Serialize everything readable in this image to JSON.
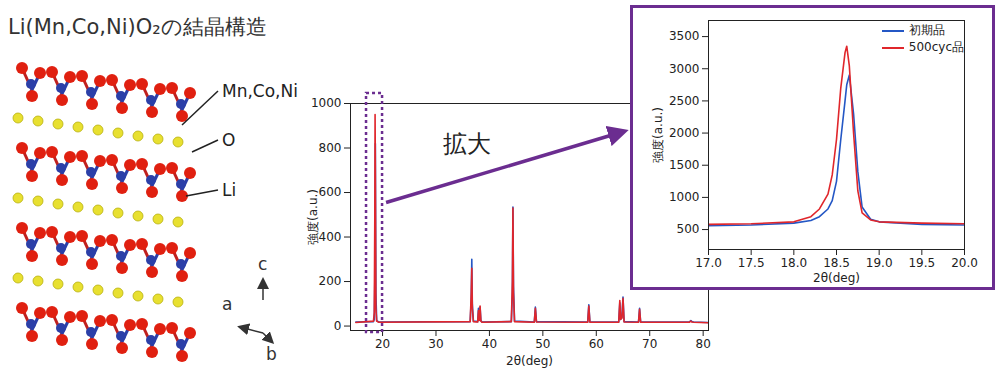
{
  "title": "Li(Mn,Co,Ni)O₂の結晶構造",
  "structure": {
    "labels": [
      "Mn,Co,Ni",
      "O",
      "Li"
    ],
    "axes": [
      "a",
      "b",
      "c"
    ]
  },
  "annotation": "拡大",
  "chart_data": [
    {
      "type": "line",
      "x_label": "2θ(deg)",
      "y_label": "強度(a.u.)",
      "xlim": [
        14,
        81
      ],
      "xticks": [
        20,
        30,
        40,
        50,
        60,
        70,
        80
      ],
      "ylim": [
        -20,
        1000
      ],
      "yticks": [
        0,
        200,
        400,
        600,
        800,
        1000
      ],
      "grid": false,
      "x": [
        15,
        18.3,
        18.45,
        18.55,
        18.6,
        18.65,
        18.75,
        18.9,
        19.3,
        36.4,
        36.6,
        36.7,
        36.8,
        37.0,
        37.8,
        37.95,
        38.1,
        38.25,
        38.4,
        38.6,
        44.1,
        44.3,
        44.4,
        44.5,
        44.7,
        48.4,
        48.6,
        48.8,
        58.4,
        58.6,
        58.8,
        64.2,
        64.4,
        64.55,
        64.8,
        65.0,
        65.2,
        67.9,
        68.1,
        68.3,
        77.4,
        77.7,
        77.9,
        78.2,
        81
      ],
      "series": [
        {
          "name": "初期品",
          "color": "#2457c5",
          "values": [
            18,
            20,
            30,
            200,
            500,
            820,
            150,
            25,
            18,
            20,
            120,
            300,
            100,
            22,
            20,
            80,
            30,
            85,
            25,
            18,
            20,
            150,
            535,
            180,
            22,
            18,
            85,
            20,
            18,
            95,
            18,
            18,
            105,
            30,
            40,
            130,
            20,
            18,
            80,
            18,
            18,
            25,
            20,
            18,
            16
          ]
        },
        {
          "name": "500cyc品",
          "color": "#e0262b",
          "values": [
            16,
            22,
            60,
            500,
            950,
            700,
            80,
            22,
            17,
            20,
            150,
            260,
            80,
            20,
            18,
            70,
            25,
            90,
            22,
            17,
            20,
            200,
            530,
            150,
            20,
            17,
            80,
            18,
            17,
            90,
            17,
            17,
            115,
            30,
            35,
            125,
            18,
            17,
            75,
            17,
            17,
            22,
            18,
            17,
            15
          ]
        }
      ]
    },
    {
      "type": "line",
      "x_label": "2θ(deg)",
      "y_label": "強度(a.u.)",
      "xlim": [
        17,
        20
      ],
      "xticks": [
        {
          "value": 17,
          "label": "17.0"
        },
        17.5,
        {
          "value": 18,
          "label": "18.0"
        },
        18.5,
        {
          "value": 19,
          "label": "19.0"
        },
        19.5,
        {
          "value": 20,
          "label": "20.0"
        }
      ],
      "ylim": [
        190,
        3750
      ],
      "yticks": [
        500,
        1000,
        1500,
        2000,
        2500,
        3000,
        3500
      ],
      "grid": false,
      "legend": "top-right",
      "x": [
        17,
        17.5,
        18.0,
        18.2,
        18.3,
        18.4,
        18.45,
        18.5,
        18.55,
        18.6,
        18.62,
        18.65,
        18.7,
        18.75,
        18.8,
        18.9,
        19.0,
        19.5,
        20
      ],
      "series": [
        {
          "name": "初期品",
          "color": "#2457c5",
          "values": [
            560,
            570,
            600,
            640,
            700,
            820,
            950,
            1250,
            1900,
            2500,
            2750,
            2900,
            2300,
            1400,
            850,
            660,
            620,
            580,
            570
          ]
        },
        {
          "name": "500cyc品",
          "color": "#e0262b",
          "values": [
            580,
            590,
            620,
            700,
            820,
            1050,
            1350,
            1900,
            2700,
            3250,
            3350,
            3050,
            2000,
            1100,
            760,
            650,
            620,
            600,
            590
          ]
        }
      ]
    }
  ]
}
